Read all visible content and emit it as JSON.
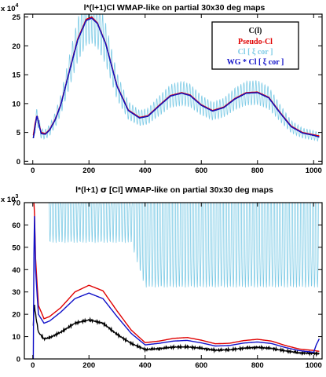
{
  "chart_data": [
    {
      "type": "line",
      "title": "l*(l+1)Cl WMAP-like on partial 30x30 deg maps",
      "y_multiplier": "x 10",
      "y_multiplier_exp": "4",
      "xlim": [
        -30,
        1030
      ],
      "ylim": [
        -0.5,
        25.5
      ],
      "x_ticks": [
        0,
        200,
        400,
        600,
        800,
        1000
      ],
      "y_ticks": [
        0,
        5,
        10,
        15,
        20,
        25
      ],
      "legend_position": "top-right",
      "colors": {
        "C(l)": "#000000",
        "Pseudo-Cl": "#e00000",
        "Cl [ ξ cor ]": "#7ecbe6",
        "WG * Cl [ ξ cor ]": "#1010c8"
      },
      "series": [
        {
          "name": "C(l)",
          "color": "#000000",
          "x": [
            2,
            8,
            15,
            20,
            30,
            45,
            60,
            80,
            100,
            130,
            160,
            190,
            210,
            230,
            260,
            300,
            340,
            380,
            410,
            450,
            490,
            530,
            560,
            600,
            640,
            680,
            720,
            760,
            800,
            840,
            880,
            920,
            960,
            1000,
            1020
          ],
          "y": [
            4.0,
            6.0,
            8.0,
            6.8,
            4.8,
            4.7,
            5.4,
            7.2,
            9.8,
            15.5,
            21.0,
            24.4,
            24.8,
            23.9,
            20.3,
            13.0,
            8.8,
            7.5,
            7.8,
            9.6,
            11.3,
            11.8,
            11.4,
            9.7,
            8.7,
            9.3,
            10.8,
            11.8,
            11.9,
            11.0,
            8.4,
            6.0,
            4.9,
            4.5,
            4.2
          ]
        },
        {
          "name": "Pseudo-Cl",
          "color": "#e00000",
          "x": [
            2,
            8,
            15,
            20,
            30,
            45,
            60,
            80,
            100,
            130,
            160,
            190,
            210,
            230,
            260,
            300,
            340,
            380,
            410,
            450,
            490,
            530,
            560,
            600,
            640,
            680,
            720,
            760,
            800,
            840,
            880,
            920,
            960,
            1000,
            1020
          ],
          "y": [
            4.5,
            6.5,
            8.0,
            6.9,
            5.0,
            4.8,
            5.5,
            7.3,
            9.9,
            15.6,
            21.2,
            24.6,
            25.0,
            24.0,
            20.4,
            13.1,
            8.9,
            7.6,
            7.9,
            9.7,
            11.4,
            11.9,
            11.5,
            9.8,
            8.8,
            9.4,
            10.9,
            11.9,
            12.0,
            11.1,
            8.5,
            6.1,
            5.0,
            4.6,
            4.4
          ]
        },
        {
          "name": "Cl [ ξ cor ]",
          "color": "#7ecbe6",
          "x": [
            2,
            8,
            15,
            20,
            30,
            45,
            60,
            80,
            100,
            130,
            160,
            190,
            210,
            230,
            260,
            300,
            340,
            380,
            410,
            450,
            490,
            530,
            560,
            600,
            640,
            680,
            720,
            760,
            800,
            840,
            880,
            920,
            960,
            1000,
            1020
          ],
          "y": [
            4.0,
            6.0,
            8.0,
            6.8,
            4.8,
            4.7,
            5.4,
            7.2,
            9.8,
            15.5,
            21.0,
            24.4,
            24.8,
            23.9,
            20.3,
            13.0,
            8.8,
            7.5,
            7.8,
            9.6,
            11.3,
            11.8,
            11.4,
            9.7,
            8.7,
            9.3,
            10.8,
            11.8,
            11.9,
            11.0,
            8.4,
            6.0,
            4.9,
            4.5,
            4.2
          ]
        },
        {
          "name": "WG * Cl [ ξ cor ]",
          "color": "#1010c8",
          "x": [
            2,
            8,
            15,
            20,
            30,
            45,
            60,
            80,
            100,
            130,
            160,
            190,
            210,
            230,
            260,
            300,
            340,
            380,
            410,
            450,
            490,
            530,
            560,
            600,
            640,
            680,
            720,
            760,
            800,
            840,
            880,
            920,
            960,
            1000,
            1020
          ],
          "y": [
            4.0,
            6.0,
            8.0,
            6.8,
            4.8,
            4.7,
            5.4,
            7.2,
            9.8,
            15.5,
            21.0,
            24.4,
            24.8,
            23.9,
            20.3,
            13.0,
            8.8,
            7.5,
            7.8,
            9.6,
            11.3,
            11.8,
            11.4,
            9.7,
            8.7,
            9.3,
            10.8,
            11.8,
            11.9,
            11.0,
            8.4,
            6.0,
            4.9,
            4.5,
            4.2
          ]
        }
      ]
    },
    {
      "type": "line",
      "title_pre": "l*(l+1) ",
      "title_sigma": "σ",
      "title_post": " [Cl] WMAP-like on partial 30x30 deg maps",
      "y_multiplier": "x 10",
      "y_multiplier_exp": "3",
      "xlim": [
        -30,
        1030
      ],
      "ylim": [
        0,
        70
      ],
      "x_ticks": [
        0,
        200,
        400,
        600,
        800,
        1000
      ],
      "y_ticks": [
        0,
        10,
        20,
        30,
        40,
        50,
        60,
        70
      ],
      "colors": {
        "C(l)": "#000000",
        "Pseudo-Cl": "#e00000",
        "Cl [ ξ cor ]": "#7ecbe6",
        "WG * Cl [ ξ cor ]": "#1010c8"
      },
      "series": [
        {
          "name": "C(l)",
          "color": "#000000",
          "x": [
            2,
            5,
            10,
            20,
            40,
            60,
            100,
            150,
            200,
            250,
            300,
            350,
            400,
            450,
            500,
            550,
            600,
            650,
            700,
            750,
            800,
            850,
            900,
            950,
            1000,
            1020
          ],
          "y": [
            15,
            25,
            20,
            12,
            9,
            9.5,
            12,
            16,
            17.5,
            16,
            11,
            7,
            4.2,
            4.6,
            5.3,
            5.4,
            4.8,
            3.9,
            4.1,
            4.8,
            5.2,
            4.7,
            3.6,
            2.7,
            2.5,
            2.3
          ]
        },
        {
          "name": "Pseudo-Cl",
          "color": "#e00000",
          "x": [
            2,
            5,
            10,
            20,
            40,
            60,
            100,
            150,
            200,
            250,
            300,
            350,
            400,
            450,
            500,
            550,
            600,
            650,
            700,
            750,
            800,
            850,
            900,
            950,
            1000,
            1020
          ],
          "y": [
            70,
            70,
            45,
            24,
            18,
            19,
            23,
            30,
            33,
            30.5,
            21.5,
            13,
            7.3,
            8.0,
            9.2,
            9.6,
            8.4,
            6.8,
            7.0,
            8.2,
            8.8,
            8.0,
            6.0,
            4.4,
            3.8,
            3.4
          ]
        },
        {
          "name": "Cl [ ξ cor ]",
          "color": "#7ecbe6",
          "x": [
            2,
            60,
            100,
            150,
            200,
            250,
            300,
            350,
            400,
            450,
            500,
            550,
            600,
            650,
            700,
            750,
            800,
            850,
            900,
            950,
            1000,
            1020
          ],
          "y": [
            70,
            70,
            70,
            70,
            70,
            70,
            70,
            70,
            50,
            50,
            50,
            50,
            50,
            50,
            50,
            50,
            50,
            50,
            50,
            50,
            50,
            50
          ]
        },
        {
          "name": "WG * Cl [ ξ cor ]",
          "color": "#1010c8",
          "x": [
            2,
            5,
            10,
            20,
            40,
            60,
            100,
            150,
            200,
            250,
            300,
            350,
            400,
            450,
            500,
            550,
            600,
            650,
            700,
            750,
            800,
            850,
            900,
            950,
            1000,
            1010,
            1020
          ],
          "y": [
            0,
            70,
            40,
            20,
            16,
            17,
            21,
            27,
            29.5,
            27,
            19,
            11.5,
            6.3,
            7.0,
            8.0,
            8.3,
            7.2,
            5.8,
            6.0,
            7.1,
            7.6,
            6.9,
            5.1,
            3.7,
            3.0,
            6.5,
            9
          ]
        }
      ]
    }
  ]
}
